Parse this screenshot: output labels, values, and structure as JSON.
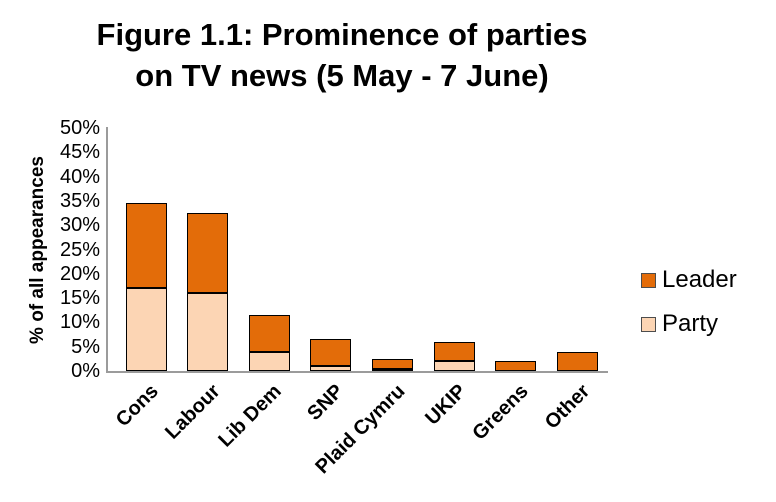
{
  "title": {
    "line1": "Figure 1.1: Prominence of parties",
    "line2": "on TV news (5 May - 7 June)"
  },
  "chart_data": {
    "type": "bar",
    "stacked": true,
    "title": "Figure 1.1: Prominence of parties on TV news (5 May - 7 June)",
    "categories": [
      "Cons",
      "Labour",
      "Lib Dem",
      "SNP",
      "Plaid Cymru",
      "UKIP",
      "Greens",
      "Other"
    ],
    "series": [
      {
        "name": "Party",
        "color": "#FCD5B4",
        "values": [
          17,
          16,
          4,
          1,
          0.5,
          2,
          0,
          0
        ]
      },
      {
        "name": "Leader",
        "color": "#E36C09",
        "values": [
          17.5,
          16.5,
          7.5,
          5.5,
          2,
          4,
          2,
          4
        ]
      }
    ],
    "totals": [
      34.5,
      32.5,
      11.5,
      6.5,
      2.5,
      6,
      2,
      4
    ],
    "xlabel": "",
    "ylabel": "% of all appearances",
    "ylim": [
      0,
      50
    ],
    "ytick_step": 5,
    "ytick_labels": [
      "0%",
      "5%",
      "10%",
      "15%",
      "20%",
      "25%",
      "30%",
      "35%",
      "40%",
      "45%",
      "50%"
    ],
    "grid": false,
    "legend_position": "right",
    "legend_order": [
      "Leader",
      "Party"
    ],
    "colors": {
      "leader": "#E36C09",
      "party": "#FCD5B4",
      "bar_border": "#000000",
      "axis_line": "#9b9b9b",
      "text": "#000000",
      "background": "#ffffff"
    }
  }
}
